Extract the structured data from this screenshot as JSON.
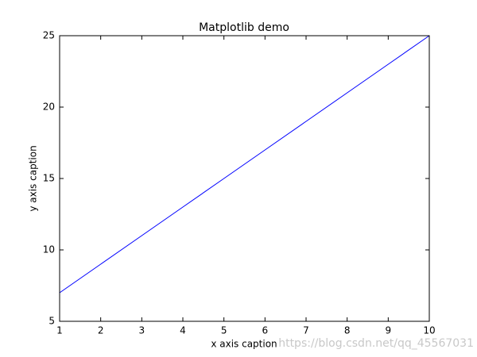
{
  "chart_data": {
    "type": "line",
    "title": "Matplotlib demo",
    "x_label": "x axis caption",
    "y_label": "y axis caption",
    "x": [
      1,
      2,
      3,
      4,
      5,
      6,
      7,
      8,
      9,
      10
    ],
    "series": [
      {
        "name": "y",
        "color": "#0000ff",
        "values": [
          7,
          9,
          11,
          13,
          15,
          17,
          19,
          21,
          23,
          25
        ]
      }
    ],
    "xlim": [
      1,
      10
    ],
    "ylim": [
      5,
      25
    ],
    "xticks": [
      1,
      2,
      3,
      4,
      5,
      6,
      7,
      8,
      9,
      10
    ],
    "yticks": [
      5,
      10,
      15,
      20,
      25
    ],
    "grid": false,
    "legend": false
  },
  "watermark": "https://blog.csdn.net/qq_45567031"
}
